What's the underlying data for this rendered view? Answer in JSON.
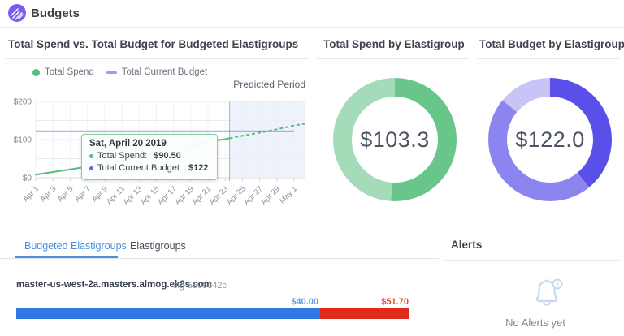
{
  "header": {
    "title": "Budgets",
    "logo_color": "#7d5bef"
  },
  "spend_vs_budget": {
    "title": "Total Spend vs. Total Budget for Budgeted Elastigroups",
    "legend": [
      {
        "label": "Total Spend",
        "marker": "circle",
        "color": "#55bd83"
      },
      {
        "label": "Total Current Budget",
        "marker": "dash",
        "color": "#a09af5"
      }
    ],
    "predicted_label": "Predicted Period",
    "tooltip": {
      "title": "Sat, April 20 2019",
      "rows": [
        {
          "label": "Total Spend:",
          "value": "$90.50",
          "bullet_color": "#55bd83"
        },
        {
          "label": "Total Current Budget:",
          "value": "$122",
          "bullet_color": "#6f63ee"
        }
      ]
    }
  },
  "chart_data": [
    {
      "type": "line",
      "title": "Total Spend vs. Total Budget for Budgeted Elastigroups",
      "xlabel": "",
      "ylabel": "",
      "x_tick_labels": [
        "Apr 1",
        "Apr 3",
        "Apr 5",
        "Apr 7",
        "Apr 9",
        "Apr 11",
        "Apr 13",
        "Apr 15",
        "Apr 17",
        "Apr 19",
        "Apr 21",
        "Apr 23",
        "Apr 25",
        "Apr 27",
        "Apr 29",
        "May 1"
      ],
      "x_domain_days": [
        1,
        31
      ],
      "ylim": [
        0,
        200
      ],
      "grid_step": 50,
      "y_tick_labels": [
        {
          "value": 0,
          "label": "$0"
        },
        {
          "value": 100,
          "label": "$100"
        },
        {
          "value": 200,
          "label": "$200"
        }
      ],
      "series": [
        {
          "name": "Total Spend",
          "kind": "line",
          "color": "#55bd83",
          "actual": [
            [
              1,
              8
            ],
            [
              3,
              15
            ],
            [
              5,
              22
            ],
            [
              7,
              29
            ],
            [
              9,
              37
            ],
            [
              11,
              45
            ],
            [
              13,
              54
            ],
            [
              15,
              64
            ],
            [
              17,
              74
            ],
            [
              19,
              84
            ],
            [
              20,
              90.5
            ],
            [
              21,
              95
            ],
            [
              23,
              101
            ],
            [
              23.5,
              103.3
            ]
          ],
          "predicted": [
            [
              23.5,
              103.3
            ],
            [
              25,
              110
            ],
            [
              27,
              118
            ],
            [
              29,
              127
            ],
            [
              31,
              137
            ],
            [
              32.3,
              142
            ]
          ]
        },
        {
          "name": "Total Current Budget",
          "kind": "hline",
          "color": "#6f63ee",
          "value": 122
        }
      ],
      "predicted_region": {
        "label": "Predicted Period",
        "start_day": 23.5,
        "fill": "#e9effa",
        "boundary_color": "#b6bcc4"
      },
      "highlight_point": {
        "day": 20,
        "value": 90.5,
        "date": "Sat, April 20 2019",
        "total_spend": "$90.50",
        "total_current_budget": "$122"
      }
    },
    {
      "type": "donut",
      "title": "Total Spend by Elastigroup",
      "center_label": "$103.3",
      "total": 103.3,
      "segments": [
        {
          "share": 51,
          "color": "#68c68b"
        },
        {
          "share": 49,
          "color": "#a4dbb9"
        }
      ]
    },
    {
      "type": "donut",
      "title": "Total Budget by Elastigroup",
      "center_label": "$122.0",
      "total": 122.0,
      "segments": [
        {
          "share": 39,
          "color": "#5a4fe8"
        },
        {
          "share": 47,
          "color": "#8c85f0"
        },
        {
          "share": 14,
          "color": "#c8c4f8"
        }
      ]
    }
  ],
  "spend_donut": {
    "title": "Total Spend by Elastigroup",
    "value": "$103.3"
  },
  "budget_donut": {
    "title": "Total Budget by Elastigroup",
    "value": "$122.0"
  },
  "bottom": {
    "tabs": [
      {
        "label": "Budgeted Elastigroups",
        "active": true
      },
      {
        "label": "Elastigroups",
        "active": false
      }
    ],
    "row": {
      "name": "master-us-west-2a.masters.almog.ek8s.com",
      "sig": "sig-5505342c",
      "budget_label": "$40.00",
      "spend_label": "$51.70",
      "budget_value": 40.0,
      "spend_value": 51.7,
      "budget_color": "#2e78e4",
      "over_color": "#e02a1b",
      "budget_label_color": "#5d99e6",
      "over_label_color": "#e8473a"
    }
  },
  "alerts": {
    "title": "Alerts",
    "empty_text": "No Alerts yet",
    "icon_color": "#c3d8f3"
  }
}
